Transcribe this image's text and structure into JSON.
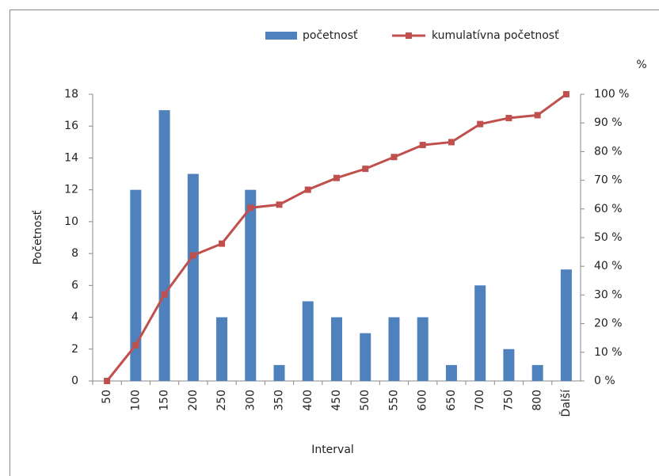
{
  "chart_data": {
    "type": "bar_line",
    "x_label": "Interval",
    "y_label": "Početnosť",
    "y2_label": "%",
    "categories": [
      "50",
      "100",
      "150",
      "200",
      "250",
      "300",
      "350",
      "400",
      "450",
      "500",
      "550",
      "600",
      "650",
      "700",
      "750",
      "800",
      "Ďalší"
    ],
    "series": [
      {
        "name": "početnosť",
        "type": "bar",
        "color": "#4f81bd",
        "values": [
          0,
          12,
          17,
          13,
          4,
          12,
          1,
          5,
          4,
          3,
          4,
          4,
          1,
          6,
          2,
          1,
          7
        ]
      },
      {
        "name": "kumulatívna početnosť",
        "type": "line",
        "axis": "y2",
        "color": "#c0504d",
        "values": [
          0,
          12.5,
          30.2,
          43.8,
          47.9,
          60.4,
          61.5,
          66.7,
          70.8,
          74.0,
          78.1,
          82.3,
          83.3,
          89.6,
          91.7,
          92.7,
          100
        ]
      }
    ],
    "ylim": [
      0,
      18
    ],
    "yticks": [
      0,
      2,
      4,
      6,
      8,
      10,
      12,
      14,
      16,
      18
    ],
    "y2lim": [
      0,
      100
    ],
    "y2ticks": [
      {
        "value": 0,
        "label": "0 %"
      },
      {
        "value": 10,
        "label": "10 %"
      },
      {
        "value": 20,
        "label": "20 %"
      },
      {
        "value": 30,
        "label": "30 %"
      },
      {
        "value": 40,
        "label": "40 %"
      },
      {
        "value": 50,
        "label": "50 %"
      },
      {
        "value": 60,
        "label": "60 %"
      },
      {
        "value": 70,
        "label": "70 %"
      },
      {
        "value": 80,
        "label": "80 %"
      },
      {
        "value": 90,
        "label": "90 %"
      },
      {
        "value": 100,
        "label": "100 %"
      }
    ],
    "grid": false,
    "legend": "top"
  }
}
